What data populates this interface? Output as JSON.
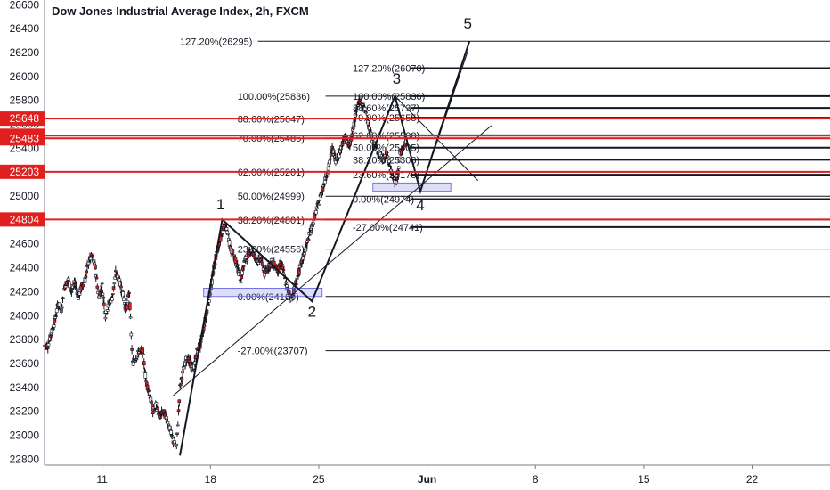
{
  "title": "Dow Jones Industrial Average Index, 2h, FXCM",
  "chart_data": {
    "type": "candlestick",
    "ylim": [
      22750,
      26640
    ],
    "xlim": [
      7.5,
      30.7
    ],
    "y_ticks": [
      22800,
      23000,
      23200,
      23400,
      23600,
      23800,
      24000,
      24200,
      24400,
      24600,
      24800,
      25000,
      25200,
      25400,
      25600,
      25800,
      26000,
      26200,
      26400,
      26600
    ],
    "x_ticks": [
      {
        "x": 9.2,
        "label": "11"
      },
      {
        "x": 12.4,
        "label": "18"
      },
      {
        "x": 15.6,
        "label": "25"
      },
      {
        "x": 18.8,
        "label": "Jun"
      },
      {
        "x": 22.0,
        "label": "8"
      },
      {
        "x": 25.2,
        "label": "15"
      },
      {
        "x": 28.4,
        "label": "22"
      }
    ],
    "price_lines": [
      {
        "value": 25648,
        "label": "25648"
      },
      {
        "value": 25505,
        "label": "25505"
      },
      {
        "value": 25483,
        "label": "25483"
      },
      {
        "value": 25203,
        "label": "25203"
      },
      {
        "value": 24804,
        "label": "24804"
      }
    ],
    "fib_left": [
      {
        "value": 26295,
        "label": "127.20%(26295)",
        "xlabel": 11.5,
        "xstart": 13.8
      },
      {
        "value": 25836,
        "label": "100.00%(25836)",
        "xlabel": 13.2,
        "xstart": 15.8
      },
      {
        "value": 25647,
        "label": "88.60%(25647)",
        "xlabel": 13.2,
        "xstart": 15.8
      },
      {
        "value": 25486,
        "label": "70.00%(25486)",
        "xlabel": 13.2,
        "xstart": 15.8
      },
      {
        "value": 25201,
        "label": "62.00%(25201)",
        "xlabel": 13.2,
        "xstart": 15.8
      },
      {
        "value": 24999,
        "label": "50.00%(24999)",
        "xlabel": 13.2,
        "xstart": 15.8
      },
      {
        "value": 24801,
        "label": "38.20%(24801)",
        "xlabel": 13.2,
        "xstart": 15.8
      },
      {
        "value": 24556,
        "label": "23.60%(24556)",
        "xlabel": 13.2,
        "xstart": 15.8
      },
      {
        "value": 24160,
        "label": "0.00%(24160)",
        "xlabel": 13.2,
        "xstart": 15.8
      },
      {
        "value": 23707,
        "label": "-27.00%(23707)",
        "xlabel": 13.2,
        "xstart": 15.8
      }
    ],
    "fib_right": [
      {
        "value": 26070,
        "label": "127.20%(26070)",
        "xlabel": 16.6
      },
      {
        "value": 25836,
        "label": "100.00%(25836)",
        "xlabel": 16.6
      },
      {
        "value": 25737,
        "label": "88.60%(25737)",
        "xlabel": 16.6
      },
      {
        "value": 25655,
        "label": "79.00%(25655)",
        "xlabel": 16.6
      },
      {
        "value": 25508,
        "label": "62.00%(25508)",
        "xlabel": 16.6
      },
      {
        "value": 25405,
        "label": "50.00%(25405)",
        "xlabel": 16.6
      },
      {
        "value": 25303,
        "label": "38.20%(25303)",
        "xlabel": 16.6
      },
      {
        "value": 25178,
        "label": "23.60%(25178)",
        "xlabel": 16.6
      },
      {
        "value": 24974,
        "label": "0.00%(24974)",
        "xlabel": 16.6
      },
      {
        "value": 24741,
        "label": "-27.00%(24741)",
        "xlabel": 16.6
      }
    ],
    "wave_labels": [
      {
        "label": "1",
        "x": 12.7,
        "y": 24890
      },
      {
        "label": "2",
        "x": 15.4,
        "y": 23990
      },
      {
        "label": "3",
        "x": 17.9,
        "y": 25940
      },
      {
        "label": "4",
        "x": 18.6,
        "y": 24880
      },
      {
        "label": "5",
        "x": 20.0,
        "y": 26400
      }
    ],
    "wave_path": [
      {
        "x": 11.5,
        "y": 22830
      },
      {
        "x": 12.75,
        "y": 24804
      },
      {
        "x": 15.4,
        "y": 24120
      },
      {
        "x": 17.85,
        "y": 25836
      },
      {
        "x": 18.6,
        "y": 25040
      },
      {
        "x": 20.05,
        "y": 26295
      }
    ],
    "lines": [
      {
        "x1": 11.3,
        "y1": 23330,
        "x2": 20.7,
        "y2": 25590,
        "w": 1
      },
      {
        "x1": 17.85,
        "y1": 25836,
        "x2": 20.3,
        "y2": 25130,
        "w": 1
      },
      {
        "x1": 18.6,
        "y1": 25040,
        "x2": 20.0,
        "y2": 26210,
        "w": 1
      }
    ],
    "boxes": [
      {
        "x1": 12.2,
        "x2": 15.7,
        "y1": 24160,
        "y2": 24230
      },
      {
        "x1": 17.2,
        "x2": 19.5,
        "y1": 25040,
        "y2": 25110
      }
    ],
    "candles": [
      [
        7.5,
        23750
      ],
      [
        7.6,
        23850
      ],
      [
        7.7,
        23950
      ],
      [
        7.8,
        24100
      ],
      [
        7.9,
        24050
      ],
      [
        8.0,
        24250
      ],
      [
        8.1,
        24300
      ],
      [
        8.2,
        24200
      ],
      [
        8.3,
        24280
      ],
      [
        8.4,
        24150
      ],
      [
        8.5,
        24250
      ],
      [
        8.6,
        24300
      ],
      [
        8.7,
        24450
      ],
      [
        8.8,
        24500
      ],
      [
        8.9,
        24400
      ],
      [
        9.0,
        24150
      ],
      [
        9.1,
        24250
      ],
      [
        9.2,
        24000
      ],
      [
        9.3,
        24100
      ],
      [
        9.4,
        24150
      ],
      [
        9.5,
        24350
      ],
      [
        9.6,
        24300
      ],
      [
        9.7,
        24200
      ],
      [
        9.8,
        24050
      ],
      [
        9.9,
        24200
      ],
      [
        10.0,
        23600
      ],
      [
        10.1,
        23650
      ],
      [
        10.2,
        23700
      ],
      [
        10.3,
        23700
      ],
      [
        10.4,
        23450
      ],
      [
        10.5,
        23350
      ],
      [
        10.6,
        23200
      ],
      [
        10.7,
        23250
      ],
      [
        10.8,
        23150
      ],
      [
        10.9,
        23200
      ],
      [
        11.0,
        23150
      ],
      [
        11.1,
        23050
      ],
      [
        11.2,
        22950
      ],
      [
        11.3,
        22900
      ],
      [
        11.4,
        23400
      ],
      [
        11.5,
        23550
      ],
      [
        11.6,
        23650
      ],
      [
        11.7,
        23600
      ],
      [
        11.8,
        23550
      ],
      [
        11.9,
        23700
      ],
      [
        12.0,
        23750
      ],
      [
        12.1,
        23900
      ],
      [
        12.2,
        24050
      ],
      [
        12.3,
        24200
      ],
      [
        12.4,
        24400
      ],
      [
        12.5,
        24550
      ],
      [
        12.6,
        24650
      ],
      [
        12.7,
        24750
      ],
      [
        12.8,
        24700
      ],
      [
        12.9,
        24550
      ],
      [
        13.0,
        24500
      ],
      [
        13.1,
        24400
      ],
      [
        13.2,
        24300
      ],
      [
        13.3,
        24450
      ],
      [
        13.4,
        24500
      ],
      [
        13.5,
        24550
      ],
      [
        13.6,
        24500
      ],
      [
        13.7,
        24450
      ],
      [
        13.8,
        24480
      ],
      [
        13.9,
        24350
      ],
      [
        14.0,
        24400
      ],
      [
        14.1,
        24450
      ],
      [
        14.2,
        24420
      ],
      [
        14.3,
        24380
      ],
      [
        14.4,
        24450
      ],
      [
        14.5,
        24300
      ],
      [
        14.6,
        24200
      ],
      [
        14.7,
        24150
      ],
      [
        14.8,
        24250
      ],
      [
        14.9,
        24350
      ],
      [
        15.0,
        24450
      ],
      [
        15.1,
        24550
      ],
      [
        15.2,
        24650
      ],
      [
        15.3,
        24750
      ],
      [
        15.4,
        24850
      ],
      [
        15.5,
        24950
      ],
      [
        15.6,
        25050
      ],
      [
        15.7,
        25150
      ],
      [
        15.8,
        25250
      ],
      [
        15.9,
        25400
      ],
      [
        16.0,
        25300
      ],
      [
        16.1,
        25350
      ],
      [
        16.2,
        25450
      ],
      [
        16.3,
        25500
      ],
      [
        16.4,
        25400
      ],
      [
        16.5,
        25550
      ],
      [
        16.6,
        25700
      ],
      [
        16.7,
        25800
      ],
      [
        16.8,
        25750
      ],
      [
        16.9,
        25700
      ],
      [
        17.0,
        25550
      ],
      [
        17.1,
        25450
      ],
      [
        17.2,
        25400
      ],
      [
        17.3,
        25350
      ],
      [
        17.4,
        25300
      ],
      [
        17.5,
        25350
      ],
      [
        17.6,
        25250
      ],
      [
        17.7,
        25150
      ],
      [
        17.8,
        25100
      ],
      [
        17.9,
        25350
      ],
      [
        18.0,
        25400
      ],
      [
        18.1,
        25480
      ]
    ]
  }
}
